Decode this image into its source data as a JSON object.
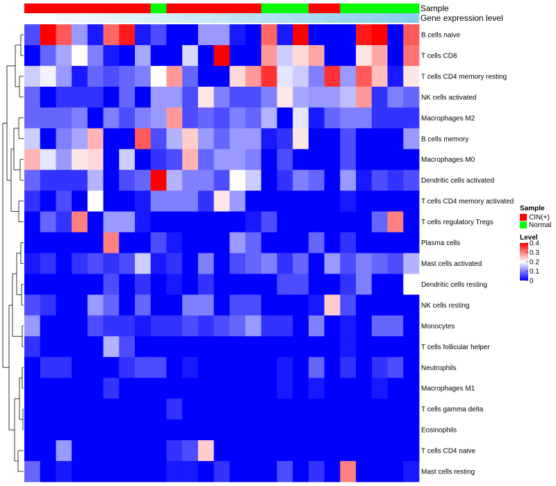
{
  "chart_data": {
    "type": "heatmap",
    "annotations": {
      "sample_label": "Sample",
      "expression_label": "Gene expression level",
      "sample_groups": [
        "CIN(+)",
        "CIN(+)",
        "CIN(+)",
        "CIN(+)",
        "CIN(+)",
        "CIN(+)",
        "CIN(+)",
        "CIN(+)",
        "Normal",
        "CIN(+)",
        "CIN(+)",
        "CIN(+)",
        "CIN(+)",
        "CIN(+)",
        "CIN(+)",
        "Normal",
        "Normal",
        "Normal",
        "CIN(+)",
        "CIN(+)",
        "Normal",
        "Normal",
        "Normal",
        "Normal",
        "Normal"
      ],
      "sample_colors": {
        "CIN(+)": "#ff0000",
        "Normal": "#00ff00"
      },
      "expression_gradient": [
        "#ffffff",
        "#87ceeb"
      ]
    },
    "rows": [
      "B cells naive",
      "T cells CD8",
      "T cells CD4 memory resting",
      "NK cells activated",
      "Macrophages M2",
      "B cells memory",
      "Macrophages M0",
      "Dendritic cells activated",
      "T cells CD4 memory activated",
      "T cells regulatory  Tregs",
      "Plasma cells",
      "Mast cells activated",
      "Dendritic cells resting",
      "NK cells resting",
      "Monocytes",
      "T cells follicular helper",
      "Neutrophils",
      "Macrophages M1",
      "T cells gamma delta",
      "Eosinophils",
      "T cells CD4 naive",
      "Mast cells resting"
    ],
    "values": [
      [
        0.06,
        0.4,
        0.33,
        0.12,
        0.02,
        0.32,
        0.38,
        0.02,
        0.06,
        0.0,
        0.0,
        0.12,
        0.12,
        0.02,
        0.0,
        0.32,
        0.02,
        0.4,
        0.0,
        0.0,
        0.0,
        0.38,
        0.4,
        0.0,
        0.33
      ],
      [
        0.0,
        0.08,
        0.13,
        0.2,
        0.1,
        0.02,
        0.0,
        0.13,
        0.0,
        0.0,
        0.17,
        0.0,
        0.4,
        0.0,
        0.0,
        0.28,
        0.16,
        0.23,
        0.27,
        0.0,
        0.0,
        0.22,
        0.27,
        0.0,
        0.31
      ],
      [
        0.16,
        0.19,
        0.12,
        0.02,
        0.08,
        0.06,
        0.08,
        0.1,
        0.2,
        0.28,
        0.08,
        0.0,
        0.0,
        0.23,
        0.28,
        0.36,
        0.18,
        0.16,
        0.1,
        0.36,
        0.12,
        0.33,
        0.25,
        0.02,
        0.22
      ],
      [
        0.08,
        0.0,
        0.04,
        0.04,
        0.04,
        0.0,
        0.08,
        0.0,
        0.12,
        0.12,
        0.06,
        0.22,
        0.1,
        0.06,
        0.06,
        0.1,
        0.22,
        0.13,
        0.12,
        0.12,
        0.15,
        0.28,
        0.04,
        0.1,
        0.08
      ],
      [
        0.08,
        0.08,
        0.08,
        0.1,
        0.0,
        0.1,
        0.06,
        0.1,
        0.12,
        0.28,
        0.06,
        0.08,
        0.06,
        0.1,
        0.08,
        0.14,
        0.0,
        0.18,
        0.02,
        0.08,
        0.1,
        0.1,
        0.04,
        0.04,
        0.04
      ],
      [
        0.16,
        0.0,
        0.1,
        0.13,
        0.26,
        0.0,
        0.0,
        0.33,
        0.06,
        0.14,
        0.24,
        0.12,
        0.08,
        0.12,
        0.12,
        0.02,
        0.04,
        0.22,
        0.0,
        0.0,
        0.06,
        0.0,
        0.0,
        0.0,
        0.12
      ],
      [
        0.26,
        0.18,
        0.12,
        0.22,
        0.23,
        0.0,
        0.16,
        0.0,
        0.04,
        0.06,
        0.26,
        0.08,
        0.12,
        0.12,
        0.1,
        0.0,
        0.06,
        0.0,
        0.0,
        0.0,
        0.06,
        0.0,
        0.0,
        0.0,
        0.0
      ],
      [
        0.08,
        0.04,
        0.04,
        0.04,
        0.14,
        0.0,
        0.06,
        0.08,
        0.4,
        0.14,
        0.1,
        0.1,
        0.06,
        0.2,
        0.16,
        0.0,
        0.04,
        0.1,
        0.08,
        0.0,
        0.12,
        0.02,
        0.06,
        0.04,
        0.06
      ],
      [
        0.04,
        0.0,
        0.06,
        0.0,
        0.2,
        0.0,
        0.0,
        0.02,
        0.1,
        0.1,
        0.1,
        0.04,
        0.22,
        0.12,
        0.0,
        0.0,
        0.0,
        0.0,
        0.0,
        0.0,
        0.02,
        0.0,
        0.0,
        0.0,
        0.0
      ],
      [
        0.0,
        0.08,
        0.04,
        0.3,
        0.0,
        0.12,
        0.12,
        0.02,
        0.0,
        0.0,
        0.0,
        0.0,
        0.0,
        0.0,
        0.02,
        0.06,
        0.0,
        0.0,
        0.0,
        0.0,
        0.0,
        0.0,
        0.08,
        0.3,
        0.0
      ],
      [
        0.0,
        0.0,
        0.0,
        0.0,
        0.0,
        0.3,
        0.0,
        0.0,
        0.06,
        0.02,
        0.0,
        0.0,
        0.0,
        0.12,
        0.08,
        0.0,
        0.0,
        0.0,
        0.08,
        0.0,
        0.04,
        0.0,
        0.0,
        0.0,
        0.0
      ],
      [
        0.02,
        0.04,
        0.0,
        0.04,
        0.06,
        0.04,
        0.06,
        0.16,
        0.02,
        0.04,
        0.0,
        0.1,
        0.0,
        0.06,
        0.08,
        0.1,
        0.04,
        0.08,
        0.0,
        0.12,
        0.06,
        0.1,
        0.08,
        0.06,
        0.14
      ],
      [
        0.0,
        0.0,
        0.0,
        0.0,
        0.0,
        0.06,
        0.0,
        0.04,
        0.0,
        0.02,
        0.0,
        0.04,
        0.0,
        0.0,
        0.0,
        0.0,
        0.06,
        0.06,
        0.0,
        0.0,
        0.04,
        0.1,
        0.0,
        0.0,
        0.2
      ],
      [
        0.06,
        0.04,
        0.0,
        0.0,
        0.12,
        0.08,
        0.0,
        0.08,
        0.0,
        0.0,
        0.1,
        0.1,
        0.0,
        0.06,
        0.06,
        0.0,
        0.0,
        0.0,
        0.02,
        0.24,
        0.06,
        0.0,
        0.0,
        0.0,
        0.0
      ],
      [
        0.12,
        0.0,
        0.0,
        0.0,
        0.06,
        0.04,
        0.04,
        0.02,
        0.04,
        0.04,
        0.06,
        0.04,
        0.06,
        0.08,
        0.12,
        0.04,
        0.04,
        0.0,
        0.1,
        0.0,
        0.02,
        0.0,
        0.08,
        0.08,
        0.0
      ],
      [
        0.04,
        0.0,
        0.0,
        0.0,
        0.0,
        0.14,
        0.06,
        0.0,
        0.0,
        0.0,
        0.0,
        0.0,
        0.0,
        0.0,
        0.0,
        0.0,
        0.0,
        0.0,
        0.0,
        0.0,
        0.02,
        0.0,
        0.0,
        0.0,
        0.0
      ],
      [
        0.0,
        0.04,
        0.04,
        0.0,
        0.0,
        0.0,
        0.04,
        0.06,
        0.06,
        0.0,
        0.02,
        0.0,
        0.0,
        0.0,
        0.0,
        0.0,
        0.02,
        0.0,
        0.08,
        0.0,
        0.04,
        0.0,
        0.04,
        0.06,
        0.0
      ],
      [
        0.0,
        0.0,
        0.0,
        0.0,
        0.0,
        0.04,
        0.0,
        0.0,
        0.0,
        0.0,
        0.0,
        0.0,
        0.0,
        0.0,
        0.0,
        0.0,
        0.02,
        0.0,
        0.02,
        0.0,
        0.0,
        0.0,
        0.02,
        0.0,
        0.0
      ],
      [
        0.0,
        0.0,
        0.0,
        0.0,
        0.0,
        0.0,
        0.0,
        0.0,
        0.0,
        0.04,
        0.0,
        0.0,
        0.0,
        0.0,
        0.0,
        0.0,
        0.0,
        0.0,
        0.0,
        0.0,
        0.0,
        0.0,
        0.0,
        0.0,
        0.0
      ],
      [
        0.0,
        0.0,
        0.0,
        0.0,
        0.0,
        0.0,
        0.0,
        0.0,
        0.0,
        0.0,
        0.0,
        0.0,
        0.0,
        0.0,
        0.0,
        0.0,
        0.0,
        0.0,
        0.0,
        0.0,
        0.0,
        0.0,
        0.0,
        0.0,
        0.0
      ],
      [
        0.0,
        0.0,
        0.12,
        0.0,
        0.0,
        0.0,
        0.0,
        0.0,
        0.0,
        0.04,
        0.06,
        0.24,
        0.0,
        0.0,
        0.0,
        0.0,
        0.0,
        0.0,
        0.0,
        0.0,
        0.0,
        0.0,
        0.0,
        0.0,
        0.0
      ],
      [
        0.08,
        0.0,
        0.02,
        0.0,
        0.0,
        0.0,
        0.0,
        0.0,
        0.0,
        0.02,
        0.02,
        0.0,
        0.04,
        0.0,
        0.0,
        0.0,
        0.06,
        0.0,
        0.04,
        0.0,
        0.3,
        0.0,
        0.0,
        0.0,
        0.02
      ]
    ],
    "color_scale": {
      "title": "Level",
      "min": 0,
      "max": 0.4,
      "ticks": [
        0,
        0.1,
        0.2,
        0.3,
        0.4
      ],
      "tick_labels": [
        "0",
        "0.1",
        "0.2",
        "0.3",
        "0.4"
      ],
      "low_color": "#0000ff",
      "mid_color": "#ffffff",
      "high_color": "#ff0000"
    },
    "legend": {
      "sample_title": "Sample",
      "entries": [
        {
          "label": "CIN(+)",
          "color": "#ff0000"
        },
        {
          "label": "Normal",
          "color": "#00ff00"
        }
      ]
    },
    "dendrogram": {
      "side": "left",
      "order": "rows as listed"
    }
  }
}
